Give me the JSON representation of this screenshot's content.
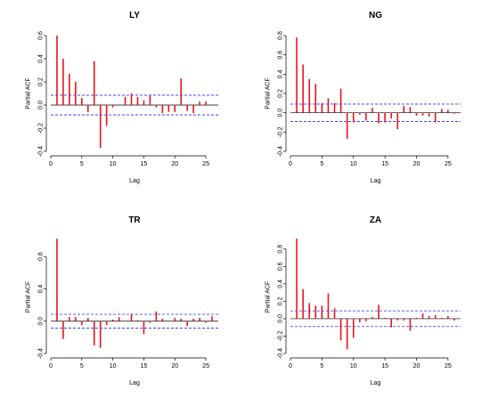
{
  "chart_data": [
    {
      "type": "bar",
      "title": "LY",
      "xlabel": "Lag",
      "ylabel": "Partial ACF",
      "xlim": [
        0,
        27
      ],
      "ylim": [
        -0.4,
        0.6
      ],
      "xticks": [
        0,
        5,
        10,
        15,
        20,
        25
      ],
      "yticks": [
        -0.4,
        -0.2,
        0.0,
        0.2,
        0.4,
        0.6
      ],
      "ci": 0.085,
      "x": [
        1,
        2,
        3,
        4,
        5,
        6,
        7,
        8,
        9,
        10,
        11,
        12,
        13,
        14,
        15,
        16,
        17,
        18,
        19,
        20,
        21,
        22,
        23,
        24,
        25,
        26
      ],
      "values": [
        0.6,
        0.4,
        0.27,
        0.2,
        0.06,
        -0.06,
        0.38,
        -0.37,
        -0.18,
        -0.02,
        0.0,
        0.07,
        0.1,
        0.07,
        0.04,
        0.08,
        -0.02,
        -0.07,
        -0.06,
        -0.06,
        0.23,
        -0.05,
        -0.07,
        0.03,
        0.03,
        0.0
      ],
      "bar_color": "#e8141e",
      "ci_color": "#2b2bff",
      "grid": false
    },
    {
      "type": "bar",
      "title": "NG",
      "xlabel": "Lag",
      "ylabel": "Partial ACF",
      "xlim": [
        0,
        27
      ],
      "ylim": [
        -0.4,
        0.8
      ],
      "xticks": [
        0,
        5,
        10,
        15,
        20,
        25
      ],
      "yticks": [
        -0.4,
        -0.2,
        0.0,
        0.2,
        0.4,
        0.6,
        0.8
      ],
      "ci": 0.09,
      "x": [
        1,
        2,
        3,
        4,
        5,
        6,
        7,
        8,
        9,
        10,
        11,
        12,
        13,
        14,
        15,
        16,
        17,
        18,
        19,
        20,
        21,
        22,
        23,
        24,
        25,
        26
      ],
      "values": [
        0.78,
        0.5,
        0.35,
        0.3,
        0.1,
        0.15,
        0.1,
        0.25,
        -0.27,
        -0.1,
        -0.02,
        -0.08,
        0.05,
        -0.11,
        -0.1,
        -0.06,
        -0.17,
        0.07,
        0.06,
        -0.03,
        -0.03,
        -0.04,
        -0.1,
        0.04,
        0.03,
        -0.01
      ],
      "bar_color": "#e8141e",
      "ci_color": "#2b2bff",
      "grid": false
    },
    {
      "type": "bar",
      "title": "TR",
      "xlabel": "Lag",
      "ylabel": "Partial ACF",
      "xlim": [
        0,
        27
      ],
      "ylim": [
        -0.4,
        1.0
      ],
      "xticks": [
        0,
        5,
        10,
        15,
        20,
        25
      ],
      "yticks": [
        -0.4,
        0.0,
        0.4,
        0.8
      ],
      "ci": 0.085,
      "x": [
        1,
        2,
        3,
        4,
        5,
        6,
        7,
        8,
        9,
        10,
        11,
        12,
        13,
        14,
        15,
        16,
        17,
        18,
        19,
        20,
        21,
        22,
        23,
        24,
        25,
        26
      ],
      "values": [
        1.02,
        -0.22,
        0.05,
        0.05,
        -0.05,
        0.04,
        -0.3,
        -0.33,
        -0.05,
        0.02,
        0.05,
        0.0,
        0.09,
        0.01,
        -0.16,
        -0.02,
        0.12,
        0.03,
        0.0,
        0.04,
        0.03,
        -0.06,
        0.03,
        0.04,
        -0.02,
        0.06
      ],
      "bar_color": "#e8141e",
      "ci_color": "#2b2bff",
      "grid": false
    },
    {
      "type": "bar",
      "title": "ZA",
      "xlabel": "Lag",
      "ylabel": "Partial ACF",
      "xlim": [
        0,
        27
      ],
      "ylim": [
        -0.4,
        0.9
      ],
      "xticks": [
        0,
        5,
        10,
        15,
        20,
        25
      ],
      "yticks": [
        -0.4,
        -0.2,
        0.0,
        0.2,
        0.4,
        0.6,
        0.8
      ],
      "ci": 0.09,
      "x": [
        1,
        2,
        3,
        4,
        5,
        6,
        7,
        8,
        9,
        10,
        11,
        12,
        13,
        14,
        15,
        16,
        17,
        18,
        19,
        20,
        21,
        22,
        23,
        24,
        25,
        26
      ],
      "values": [
        0.92,
        0.34,
        0.18,
        0.15,
        0.15,
        0.29,
        0.12,
        -0.25,
        -0.35,
        -0.22,
        -0.04,
        -0.03,
        0.02,
        0.16,
        0.01,
        -0.1,
        -0.02,
        -0.02,
        -0.14,
        0.01,
        0.06,
        0.03,
        0.04,
        0.01,
        0.03,
        -0.02
      ],
      "bar_color": "#e8141e",
      "ci_color": "#2b2bff",
      "grid": false
    }
  ]
}
